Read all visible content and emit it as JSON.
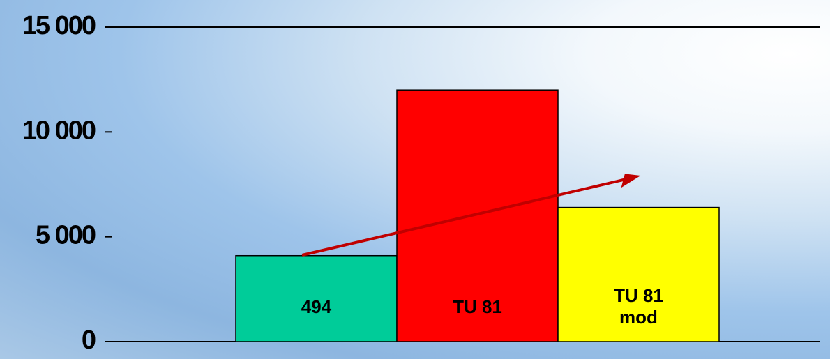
{
  "chart_data": {
    "type": "bar",
    "categories": [
      "494",
      "TU 81",
      "TU 81 mod"
    ],
    "values": [
      4100,
      12000,
      6400
    ],
    "colors": [
      "#00cc99",
      "#ff0000",
      "#ffff00"
    ],
    "ylim": [
      0,
      15000
    ],
    "yticks": [
      {
        "value": 0,
        "label": "0"
      },
      {
        "value": 5000,
        "label": "5 000"
      },
      {
        "value": 10000,
        "label": "10 000"
      },
      {
        "value": 15000,
        "label": "15 000"
      }
    ]
  }
}
